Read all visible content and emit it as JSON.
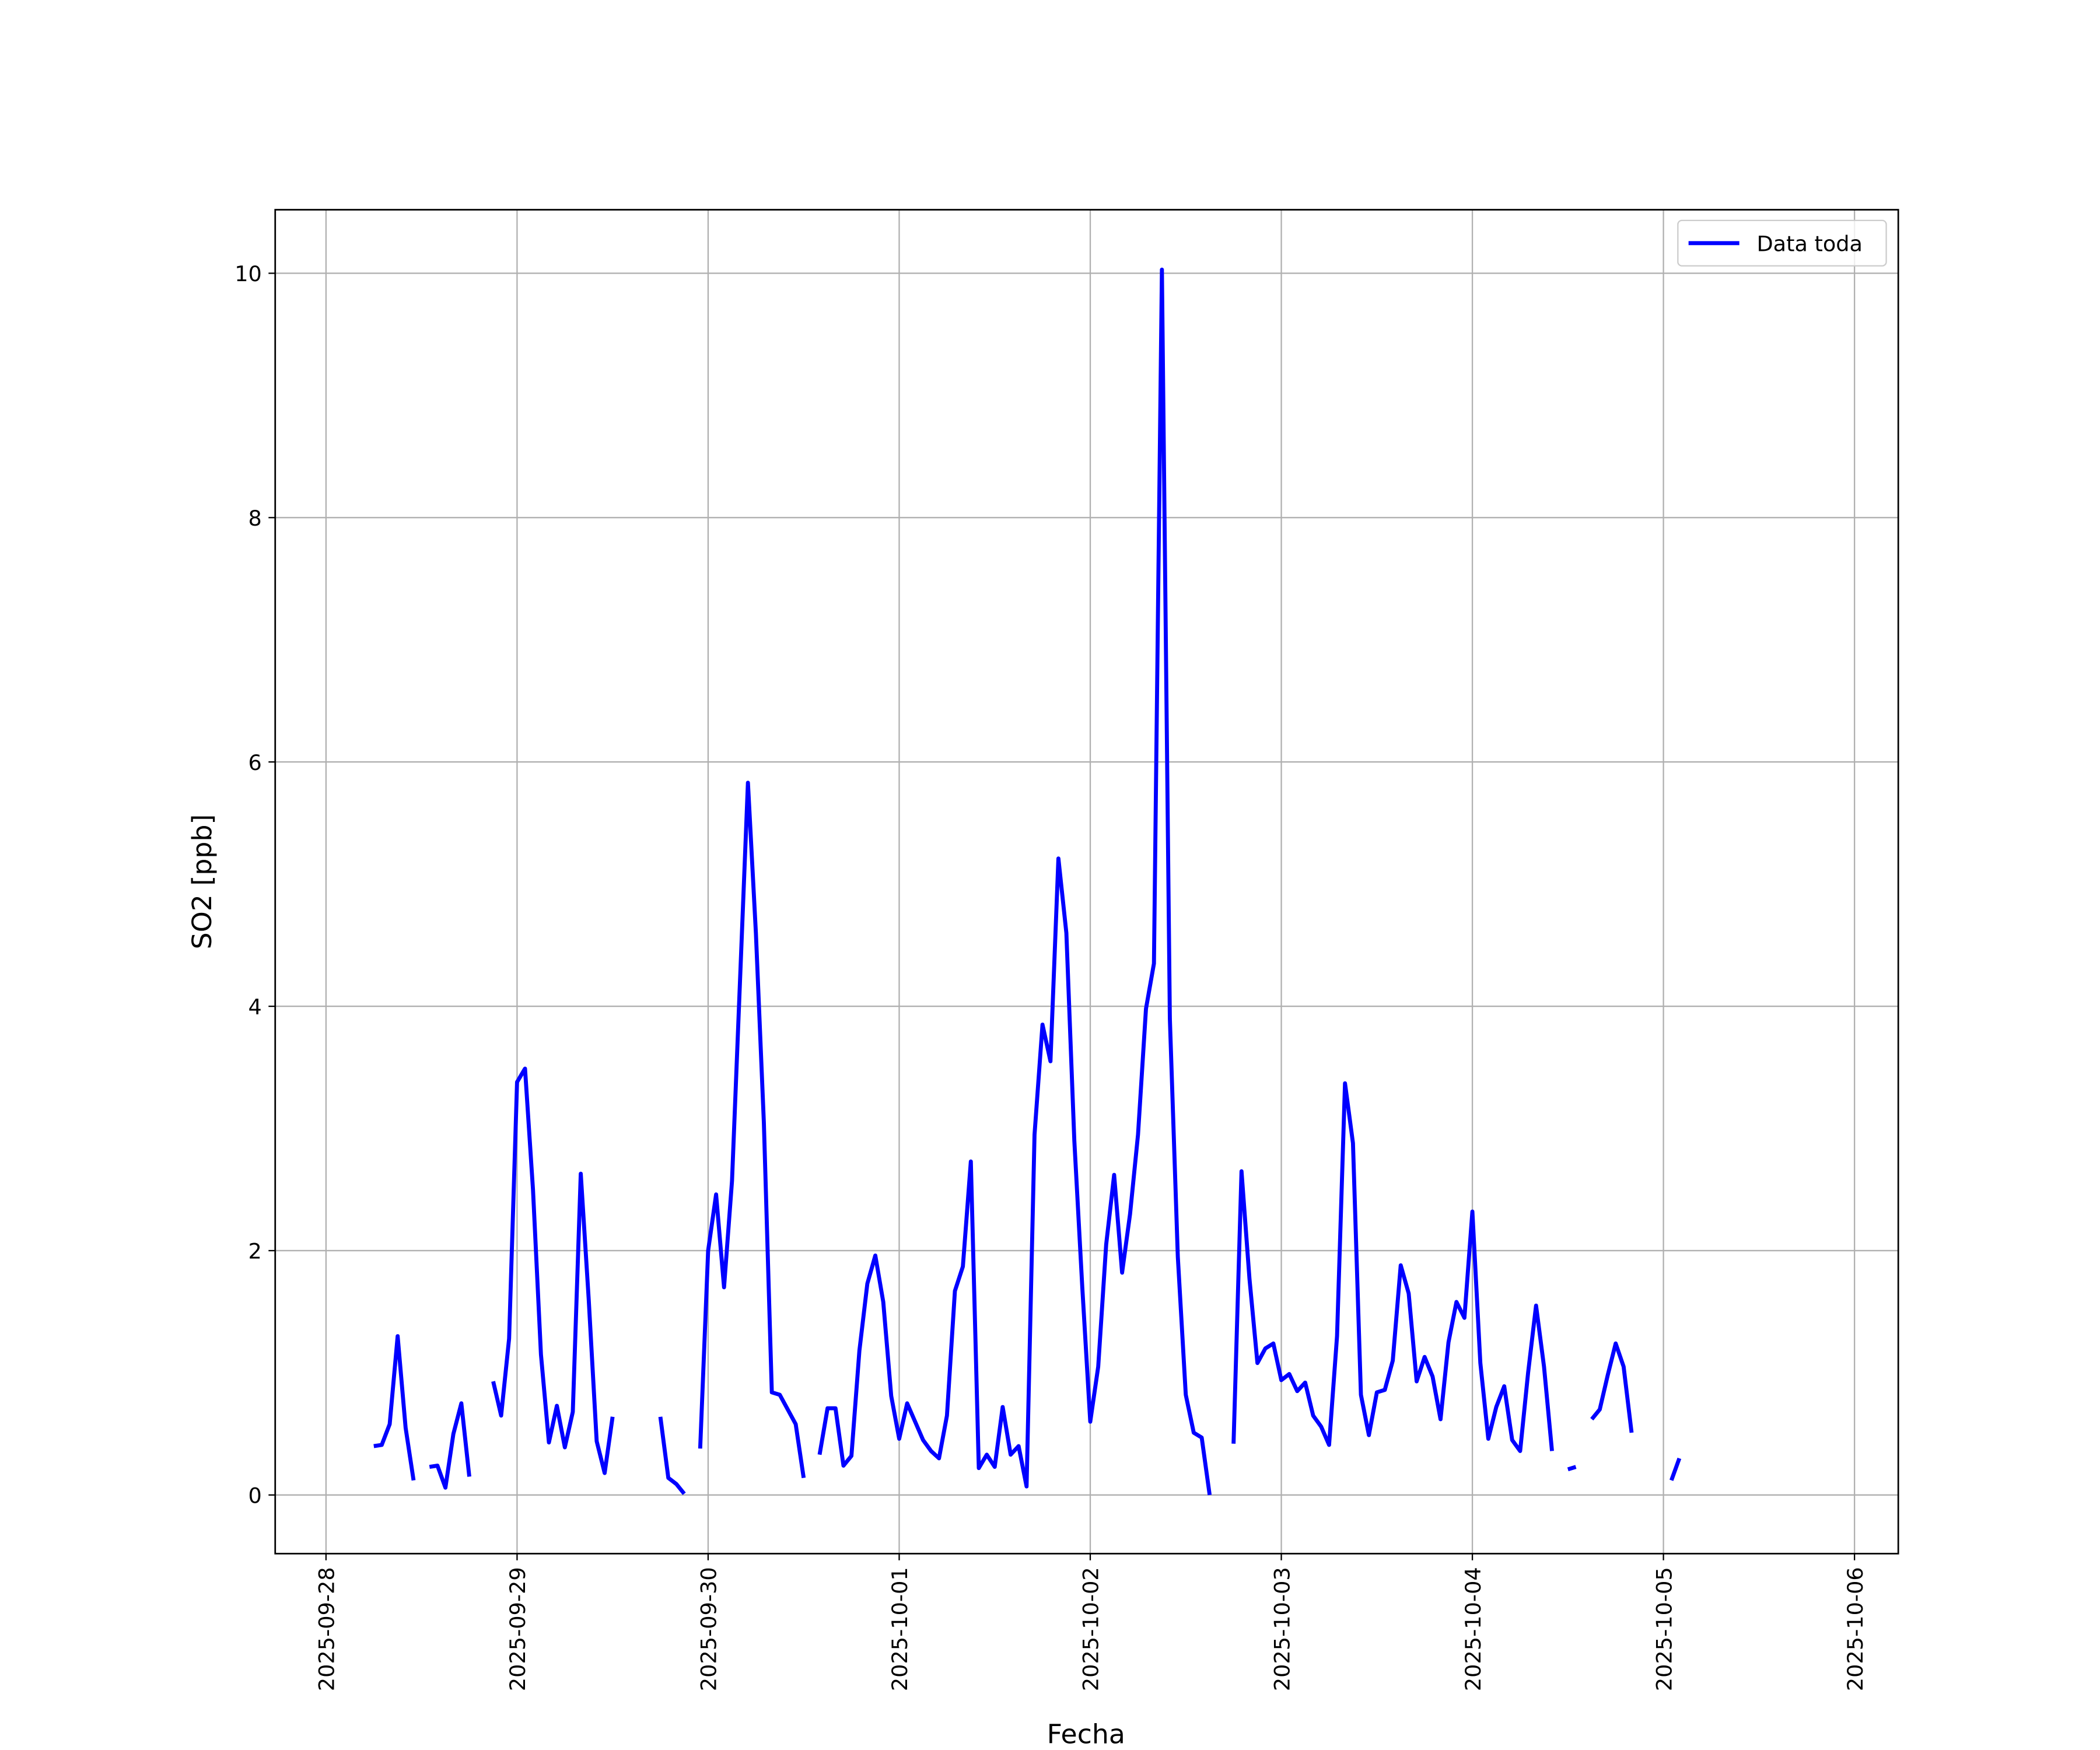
{
  "chart_data": {
    "type": "line",
    "xlabel": "Fecha",
    "ylabel": "SO2 [ppb]",
    "xlim": [
      "2025-09-27 17:37",
      "2025-10-06 05:30"
    ],
    "xticks": [
      "2025-09-28",
      "2025-09-29",
      "2025-09-30",
      "2025-10-01",
      "2025-10-02",
      "2025-10-03",
      "2025-10-04",
      "2025-10-05",
      "2025-10-06"
    ],
    "ylim": [
      -0.48,
      10.52
    ],
    "yticks": [
      0,
      2,
      4,
      6,
      8,
      10
    ],
    "grid": true,
    "legend": "upper right",
    "x": [
      "2025-09-28 06:00",
      "2025-09-28 07:00",
      "2025-09-28 08:00",
      "2025-09-28 09:00",
      "2025-09-28 10:00",
      "2025-09-28 11:00",
      "2025-09-28 12:00",
      "2025-09-28 13:00",
      "2025-09-28 14:00",
      "2025-09-28 15:00",
      "2025-09-28 16:00",
      "2025-09-28 17:00",
      "2025-09-28 18:00",
      "2025-09-28 19:00",
      "2025-09-28 21:00",
      "2025-09-28 22:00",
      "2025-09-28 23:00",
      "2025-09-29 00:00",
      "2025-09-29 01:00",
      "2025-09-29 02:00",
      "2025-09-29 03:00",
      "2025-09-29 04:00",
      "2025-09-29 05:00",
      "2025-09-29 06:00",
      "2025-09-29 07:00",
      "2025-09-29 08:00",
      "2025-09-29 09:00",
      "2025-09-29 10:00",
      "2025-09-29 11:00",
      "2025-09-29 12:00",
      "2025-09-29 13:00",
      "2025-09-29 18:00",
      "2025-09-29 19:00",
      "2025-09-29 20:00",
      "2025-09-29 21:00",
      "2025-09-29 22:00",
      "2025-09-29 23:00",
      "2025-09-30 00:00",
      "2025-09-30 01:00",
      "2025-09-30 02:00",
      "2025-09-30 03:00",
      "2025-09-30 04:00",
      "2025-09-30 05:00",
      "2025-09-30 06:00",
      "2025-09-30 07:00",
      "2025-09-30 08:00",
      "2025-09-30 09:00",
      "2025-09-30 10:00",
      "2025-09-30 11:00",
      "2025-09-30 12:00",
      "2025-09-30 13:00",
      "2025-09-30 14:00",
      "2025-09-30 15:00",
      "2025-09-30 16:00",
      "2025-09-30 17:00",
      "2025-09-30 18:00",
      "2025-09-30 19:00",
      "2025-09-30 20:00",
      "2025-09-30 21:00",
      "2025-09-30 22:00",
      "2025-09-30 23:00",
      "2025-10-01 00:00",
      "2025-10-01 01:00",
      "2025-10-01 02:00",
      "2025-10-01 03:00",
      "2025-10-01 04:00",
      "2025-10-01 05:00",
      "2025-10-01 06:00",
      "2025-10-01 07:00",
      "2025-10-01 08:00",
      "2025-10-01 09:00",
      "2025-10-01 10:00",
      "2025-10-01 11:00",
      "2025-10-01 12:00",
      "2025-10-01 13:00",
      "2025-10-01 14:00",
      "2025-10-01 15:00",
      "2025-10-01 16:00",
      "2025-10-01 17:00",
      "2025-10-01 18:00",
      "2025-10-01 19:00",
      "2025-10-01 20:00",
      "2025-10-01 21:00",
      "2025-10-01 22:00",
      "2025-10-01 23:00",
      "2025-10-02 00:00",
      "2025-10-02 01:00",
      "2025-10-02 02:00",
      "2025-10-02 03:00",
      "2025-10-02 04:00",
      "2025-10-02 05:00",
      "2025-10-02 06:00",
      "2025-10-02 07:00",
      "2025-10-02 08:00",
      "2025-10-02 09:00",
      "2025-10-02 10:00",
      "2025-10-02 11:00",
      "2025-10-02 12:00",
      "2025-10-02 13:00",
      "2025-10-02 14:00",
      "2025-10-02 15:00",
      "2025-10-02 16:00",
      "2025-10-02 18:00",
      "2025-10-02 19:00",
      "2025-10-02 20:00",
      "2025-10-02 21:00",
      "2025-10-02 22:00",
      "2025-10-02 23:00",
      "2025-10-03 00:00",
      "2025-10-03 01:00",
      "2025-10-03 02:00",
      "2025-10-03 03:00",
      "2025-10-03 04:00",
      "2025-10-03 05:00",
      "2025-10-03 06:00",
      "2025-10-03 07:00",
      "2025-10-03 08:00",
      "2025-10-03 09:00",
      "2025-10-03 10:00",
      "2025-10-03 11:00",
      "2025-10-03 12:00",
      "2025-10-03 13:00",
      "2025-10-03 14:00",
      "2025-10-03 15:00",
      "2025-10-03 16:00",
      "2025-10-03 17:00",
      "2025-10-03 18:00",
      "2025-10-03 19:00",
      "2025-10-03 20:00",
      "2025-10-03 21:00",
      "2025-10-03 22:00",
      "2025-10-03 23:00",
      "2025-10-04 00:00",
      "2025-10-04 01:00",
      "2025-10-04 02:00",
      "2025-10-04 03:00",
      "2025-10-04 04:00",
      "2025-10-04 05:00",
      "2025-10-04 06:00",
      "2025-10-04 07:00",
      "2025-10-04 08:00",
      "2025-10-04 09:00",
      "2025-10-04 10:00",
      "2025-10-04 11:00",
      "2025-10-04 12:00",
      "2025-10-04 13:00",
      "2025-10-04 14:00",
      "2025-10-04 15:00",
      "2025-10-04 16:00",
      "2025-10-04 17:00",
      "2025-10-04 18:00",
      "2025-10-04 19:00",
      "2025-10-04 20:00",
      "2025-10-04 21:00",
      "2025-10-05 01:00",
      "2025-10-05 02:00"
    ],
    "series": [
      {
        "name": "Data toda",
        "color": "#0000ff",
        "values": [
          0.4,
          0.41,
          0.58,
          1.3,
          0.55,
          0.12,
          null,
          0.23,
          0.24,
          0.06,
          0.5,
          0.75,
          0.15,
          null,
          0.93,
          0.65,
          1.28,
          3.38,
          3.49,
          2.5,
          1.15,
          0.43,
          0.73,
          0.39,
          0.68,
          2.63,
          1.6,
          0.44,
          0.18,
          0.64,
          null,
          0.64,
          0.14,
          0.09,
          0.01,
          null,
          0.38,
          2.0,
          2.46,
          1.7,
          2.57,
          4.2,
          5.83,
          4.6,
          3.05,
          0.84,
          0.82,
          0.7,
          0.58,
          0.14,
          null,
          0.33,
          0.71,
          0.71,
          0.24,
          0.32,
          1.18,
          1.73,
          1.96,
          1.58,
          0.81,
          0.46,
          0.75,
          0.6,
          0.45,
          0.36,
          0.3,
          0.65,
          1.67,
          1.87,
          2.73,
          0.22,
          0.33,
          0.23,
          0.72,
          0.33,
          0.4,
          0.07,
          2.95,
          3.85,
          3.55,
          5.21,
          4.6,
          2.9,
          1.7,
          0.6,
          1.05,
          2.05,
          2.62,
          1.82,
          2.3,
          2.95,
          3.98,
          4.35,
          10.03,
          3.9,
          1.95,
          0.82,
          0.51,
          0.47,
          0.0,
          null,
          0.42,
          2.65,
          1.77,
          1.08,
          1.2,
          1.24,
          0.94,
          0.99,
          0.85,
          0.92,
          0.65,
          0.56,
          0.41,
          1.3,
          3.37,
          2.88,
          0.82,
          0.49,
          0.84,
          0.86,
          1.1,
          1.88,
          1.65,
          0.93,
          1.13,
          0.97,
          0.62,
          1.25,
          1.58,
          1.45,
          2.32,
          1.08,
          0.46,
          0.72,
          0.89,
          0.45,
          0.36,
          1.0,
          1.55,
          1.05,
          0.36,
          null,
          0.21,
          0.23,
          null,
          0.62,
          0.7,
          0.98,
          1.24,
          1.05,
          0.51,
          null,
          0.12,
          0.3
        ]
      }
    ]
  }
}
